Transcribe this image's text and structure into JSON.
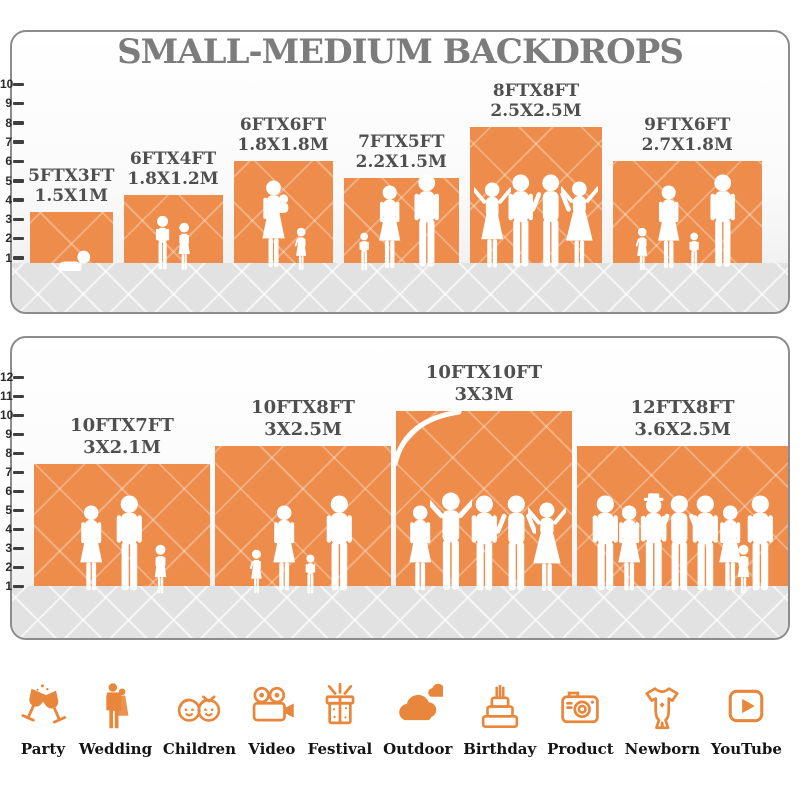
{
  "header": {
    "title": "SMALL-MEDIUM BACKDROPS"
  },
  "colors": {
    "backdrop_orange": "#ED8C4B",
    "icon_orange": "#E8863C",
    "title_gray": "#7C7C7C",
    "label_gray": "#4F4F4F",
    "floor_gray": "#E2E2E2",
    "ruler_dark": "#3F3F3F",
    "silhouette_white": "#FFFFFF"
  },
  "panels": [
    {
      "name": "small-medium-backdrops",
      "ruler_values": [
        10,
        9,
        8,
        7,
        6,
        5,
        4,
        3,
        2,
        1
      ],
      "backdrops": [
        {
          "size_ft": "5FTX3FT",
          "size_m": "1.5X1M",
          "w_ft": 5,
          "h_ft": 3,
          "people": [
            "baby-crawling"
          ]
        },
        {
          "size_ft": "6FTX4FT",
          "size_m": "1.8X1.2M",
          "w_ft": 6,
          "h_ft": 4,
          "people": [
            "boy",
            "girl"
          ]
        },
        {
          "size_ft": "6FTX6FT",
          "size_m": "1.8X1.8M",
          "w_ft": 6,
          "h_ft": 6,
          "people": [
            "woman-holding-baby",
            "girl-small"
          ]
        },
        {
          "size_ft": "7FTX5FT",
          "size_m": "2.2X1.5M",
          "w_ft": 7,
          "h_ft": 5,
          "people": [
            "toddler",
            "woman",
            "man"
          ]
        },
        {
          "size_ft": "8FTX8FT",
          "size_m": "2.5X2.5M",
          "w_ft": 8,
          "h_ft": 8,
          "people": [
            "woman-pose",
            "man",
            "man-akimbo",
            "woman-dress-pose"
          ]
        },
        {
          "size_ft": "9FTX6FT",
          "size_m": "2.7X1.8M",
          "w_ft": 9,
          "h_ft": 6,
          "people": [
            "girl-small",
            "woman",
            "toddler",
            "man"
          ]
        }
      ]
    },
    {
      "name": "large-backdrops",
      "ruler_values": [
        12,
        11,
        10,
        9,
        8,
        7,
        6,
        5,
        4,
        3,
        2,
        1
      ],
      "backdrops": [
        {
          "size_ft": "10FTX7FT",
          "size_m": "3X2.1M",
          "w_ft": 10,
          "h_ft": 7,
          "people": [
            "woman",
            "man",
            "girl"
          ]
        },
        {
          "size_ft": "10FTX8FT",
          "size_m": "3X2.5M",
          "w_ft": 10,
          "h_ft": 8,
          "people": [
            "girl-small",
            "woman",
            "toddler",
            "man"
          ]
        },
        {
          "size_ft": "10FTX10FT",
          "size_m": "3X3M",
          "w_ft": 10,
          "h_ft": 10,
          "decor": "corner-curl",
          "people": [
            "woman",
            "man-pose",
            "man",
            "man-akimbo",
            "woman-dress-pose"
          ]
        },
        {
          "size_ft": "12FTX8FT",
          "size_m": "3.6X2.5M",
          "w_ft": 12,
          "h_ft": 8,
          "people": [
            "man",
            "woman",
            "man-hat",
            "man-akimbo",
            "man",
            "woman",
            "girl",
            "man"
          ]
        }
      ]
    }
  ],
  "categories": [
    {
      "icon": "party-icon",
      "label": "Party"
    },
    {
      "icon": "wedding-icon",
      "label": "Wedding"
    },
    {
      "icon": "children-icon",
      "label": "Children"
    },
    {
      "icon": "video-icon",
      "label": "Video"
    },
    {
      "icon": "festival-icon",
      "label": "Festival"
    },
    {
      "icon": "outdoor-icon",
      "label": "Outdoor"
    },
    {
      "icon": "birthday-icon",
      "label": "Birthday"
    },
    {
      "icon": "product-icon",
      "label": "Product"
    },
    {
      "icon": "newborn-icon",
      "label": "Newborn"
    },
    {
      "icon": "youtube-icon",
      "label": "YouTube"
    }
  ]
}
